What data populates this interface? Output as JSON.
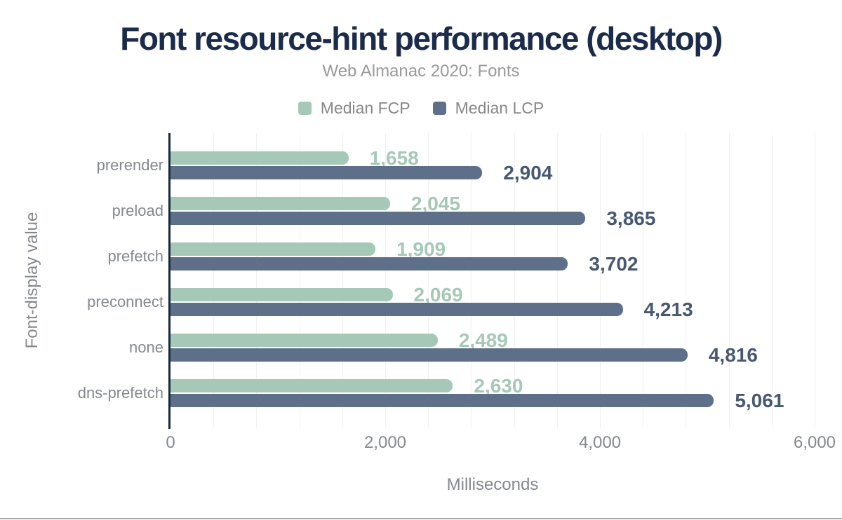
{
  "chart_data": {
    "type": "bar",
    "orientation": "horizontal",
    "title": "Font resource-hint performance (desktop)",
    "subtitle": "Web Almanac 2020: Fonts",
    "xlabel": "Milliseconds",
    "ylabel": "Font-display value",
    "categories": [
      "prerender",
      "preload",
      "prefetch",
      "preconnect",
      "none",
      "dns-prefetch"
    ],
    "series": [
      {
        "name": "Median FCP",
        "color": "#a5c9b6",
        "label_color": "#a5c9b6",
        "values": [
          1658,
          2045,
          1909,
          2069,
          2489,
          2630
        ]
      },
      {
        "name": "Median LCP",
        "color": "#5e7089",
        "label_color": "#475873",
        "values": [
          2904,
          3865,
          3702,
          4213,
          4816,
          5061
        ]
      }
    ],
    "xlim": [
      0,
      6000
    ],
    "xticks": [
      0,
      2000,
      4000,
      6000
    ],
    "minor_gridline_step": 400,
    "grid": true,
    "legend_position": "top-center",
    "value_labels": "outside-end"
  },
  "colors": {
    "title": "#1b2b4b",
    "muted_text": "#85898f",
    "subtitle_text": "#9a9a9a",
    "legend_text": "#888888",
    "axis_line": "#16293f",
    "gridline": "#f1f1f1",
    "bottom_divider": "#a6a6a6"
  }
}
